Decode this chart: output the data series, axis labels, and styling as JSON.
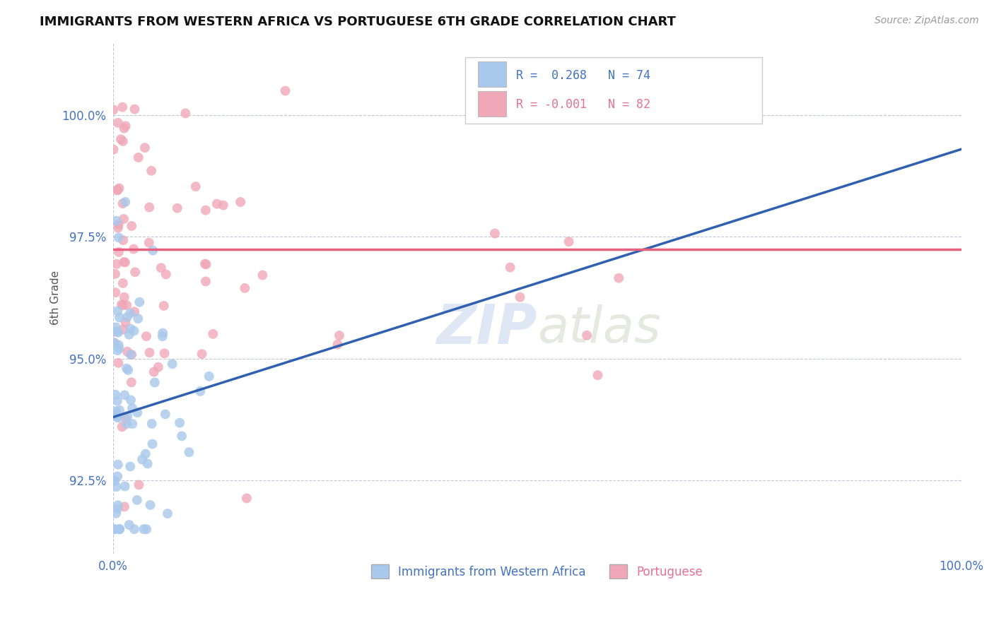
{
  "title": "IMMIGRANTS FROM WESTERN AFRICA VS PORTUGUESE 6TH GRADE CORRELATION CHART",
  "source": "Source: ZipAtlas.com",
  "xlabel": "Immigrants from Western Africa",
  "ylabel": "6th Grade",
  "xlim": [
    0.0,
    100.0
  ],
  "ylim": [
    91.0,
    101.5
  ],
  "yticks": [
    92.5,
    95.0,
    97.5,
    100.0
  ],
  "ytick_labels": [
    "92.5%",
    "95.0%",
    "97.5%",
    "100.0%"
  ],
  "xtick_labels": [
    "0.0%",
    "100.0%"
  ],
  "blue_R": 0.268,
  "blue_N": 74,
  "pink_R": -0.001,
  "pink_N": 82,
  "blue_color": "#A8C8EC",
  "pink_color": "#F0A8B8",
  "blue_line_color": "#3060B0",
  "pink_line_color": "#E86080",
  "legend_label_blue": "Immigrants from Western Africa",
  "legend_label_pink": "Portuguese",
  "watermark_zip": "ZIP",
  "watermark_atlas": "atlas",
  "blue_trend_x0": 0.0,
  "blue_trend_y0": 93.8,
  "blue_trend_x1": 100.0,
  "blue_trend_y1": 99.3,
  "pink_trend_y": 97.25,
  "pink_trend_x0": 0.0,
  "pink_trend_x1": 100.0
}
